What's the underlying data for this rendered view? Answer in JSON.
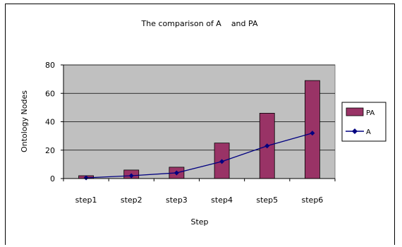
{
  "chart_data": {
    "type": "bar",
    "title": "The comparison of A    and PA",
    "xlabel": "Step",
    "ylabel": "Ontology Nodes",
    "categories": [
      "step1",
      "step2",
      "step3",
      "step4",
      "step5",
      "step6"
    ],
    "ylim": [
      0,
      80
    ],
    "yticks": [
      0,
      20,
      40,
      60,
      80
    ],
    "grid": true,
    "legend_position": "right",
    "series": [
      {
        "name": "PA",
        "type": "bar",
        "values": [
          2,
          6,
          8,
          25,
          46,
          69
        ],
        "color": "#993366"
      },
      {
        "name": "A",
        "type": "line",
        "values": [
          0.5,
          2,
          4,
          12,
          23,
          32
        ],
        "color": "#000080"
      }
    ],
    "colors": {
      "plot_background": "#c0c0c0"
    }
  }
}
